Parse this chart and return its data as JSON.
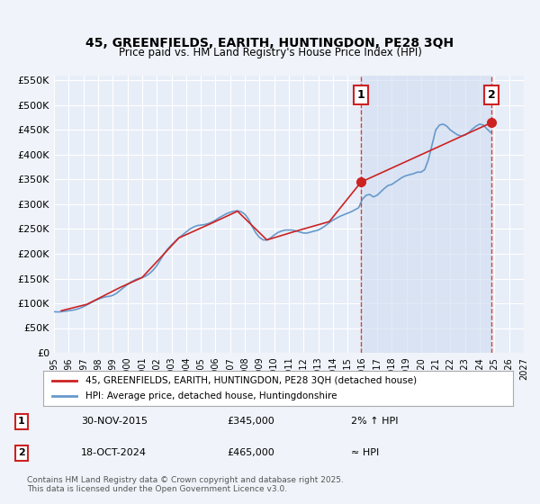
{
  "title": "45, GREENFIELDS, EARITH, HUNTINGDON, PE28 3QH",
  "subtitle": "Price paid vs. HM Land Registry's House Price Index (HPI)",
  "background_color": "#f0f4ff",
  "plot_bg_color": "#e8eef8",
  "grid_color": "#ffffff",
  "ylabel": "",
  "xlabel": "",
  "xlim": [
    1995,
    2027
  ],
  "ylim": [
    0,
    560000
  ],
  "yticks": [
    0,
    50000,
    100000,
    150000,
    200000,
    250000,
    300000,
    350000,
    400000,
    450000,
    500000,
    550000
  ],
  "ytick_labels": [
    "£0",
    "£50K",
    "£100K",
    "£150K",
    "£200K",
    "£250K",
    "£300K",
    "£350K",
    "£400K",
    "£450K",
    "£500K",
    "£550K"
  ],
  "xticks": [
    1995,
    1996,
    1997,
    1998,
    1999,
    2000,
    2001,
    2002,
    2003,
    2004,
    2005,
    2006,
    2007,
    2008,
    2009,
    2010,
    2011,
    2012,
    2013,
    2014,
    2015,
    2016,
    2017,
    2018,
    2019,
    2020,
    2021,
    2022,
    2023,
    2024,
    2025,
    2026,
    2027
  ],
  "marker1_x": 2015.917,
  "marker1_y": 345000,
  "marker1_label": "1",
  "marker1_date": "30-NOV-2015",
  "marker1_price": "£345,000",
  "marker1_hpi": "2% ↑ HPI",
  "marker2_x": 2024.8,
  "marker2_y": 465000,
  "marker2_label": "2",
  "marker2_date": "18-OCT-2024",
  "marker2_price": "£465,000",
  "marker2_hpi": "≈ HPI",
  "red_line_color": "#cc2222",
  "blue_line_color": "#6699cc",
  "shaded_region_color": "#d0ddf0",
  "legend_label_red": "45, GREENFIELDS, EARITH, HUNTINGDON, PE28 3QH (detached house)",
  "legend_label_blue": "HPI: Average price, detached house, Huntingdonshire",
  "footer": "Contains HM Land Registry data © Crown copyright and database right 2025.\nThis data is licensed under the Open Government Licence v3.0.",
  "hpi_data_x": [
    1995.0,
    1995.25,
    1995.5,
    1995.75,
    1996.0,
    1996.25,
    1996.5,
    1996.75,
    1997.0,
    1997.25,
    1997.5,
    1997.75,
    1998.0,
    1998.25,
    1998.5,
    1998.75,
    1999.0,
    1999.25,
    1999.5,
    1999.75,
    2000.0,
    2000.25,
    2000.5,
    2000.75,
    2001.0,
    2001.25,
    2001.5,
    2001.75,
    2002.0,
    2002.25,
    2002.5,
    2002.75,
    2003.0,
    2003.25,
    2003.5,
    2003.75,
    2004.0,
    2004.25,
    2004.5,
    2004.75,
    2005.0,
    2005.25,
    2005.5,
    2005.75,
    2006.0,
    2006.25,
    2006.5,
    2006.75,
    2007.0,
    2007.25,
    2007.5,
    2007.75,
    2008.0,
    2008.25,
    2008.5,
    2008.75,
    2009.0,
    2009.25,
    2009.5,
    2009.75,
    2010.0,
    2010.25,
    2010.5,
    2010.75,
    2011.0,
    2011.25,
    2011.5,
    2011.75,
    2012.0,
    2012.25,
    2012.5,
    2012.75,
    2013.0,
    2013.25,
    2013.5,
    2013.75,
    2014.0,
    2014.25,
    2014.5,
    2014.75,
    2015.0,
    2015.25,
    2015.5,
    2015.75,
    2016.0,
    2016.25,
    2016.5,
    2016.75,
    2017.0,
    2017.25,
    2017.5,
    2017.75,
    2018.0,
    2018.25,
    2018.5,
    2018.75,
    2019.0,
    2019.25,
    2019.5,
    2019.75,
    2020.0,
    2020.25,
    2020.5,
    2020.75,
    2021.0,
    2021.25,
    2021.5,
    2021.75,
    2022.0,
    2022.25,
    2022.5,
    2022.75,
    2023.0,
    2023.25,
    2023.5,
    2023.75,
    2024.0,
    2024.25,
    2024.5,
    2024.75
  ],
  "hpi_data_y": [
    83000,
    82500,
    83000,
    84000,
    85000,
    86000,
    87500,
    90000,
    93000,
    97000,
    101000,
    105000,
    108000,
    111000,
    113000,
    114000,
    116000,
    120000,
    126000,
    132000,
    138000,
    143000,
    147000,
    150000,
    152000,
    155000,
    160000,
    167000,
    176000,
    188000,
    200000,
    210000,
    218000,
    225000,
    232000,
    238000,
    244000,
    250000,
    254000,
    257000,
    258000,
    259000,
    261000,
    264000,
    268000,
    273000,
    277000,
    281000,
    284000,
    286000,
    287000,
    285000,
    280000,
    270000,
    255000,
    242000,
    233000,
    228000,
    228000,
    232000,
    238000,
    243000,
    246000,
    248000,
    248000,
    248000,
    246000,
    244000,
    242000,
    242000,
    244000,
    246000,
    248000,
    252000,
    257000,
    263000,
    268000,
    272000,
    276000,
    279000,
    282000,
    285000,
    289000,
    293000,
    310000,
    318000,
    320000,
    315000,
    318000,
    325000,
    332000,
    338000,
    340000,
    345000,
    350000,
    355000,
    358000,
    360000,
    362000,
    365000,
    365000,
    370000,
    390000,
    420000,
    450000,
    460000,
    462000,
    458000,
    450000,
    445000,
    440000,
    438000,
    440000,
    445000,
    452000,
    458000,
    462000,
    460000,
    452000,
    445000
  ],
  "property_data_x": [
    1995.5,
    1997.25,
    1999.5,
    2001.0,
    2003.5,
    2005.75,
    2007.5,
    2009.5,
    2011.5,
    2013.75,
    2015.917,
    2024.8
  ],
  "property_data_y": [
    85000,
    98000,
    132000,
    152000,
    232000,
    262000,
    286000,
    228000,
    246000,
    265000,
    345000,
    465000
  ]
}
